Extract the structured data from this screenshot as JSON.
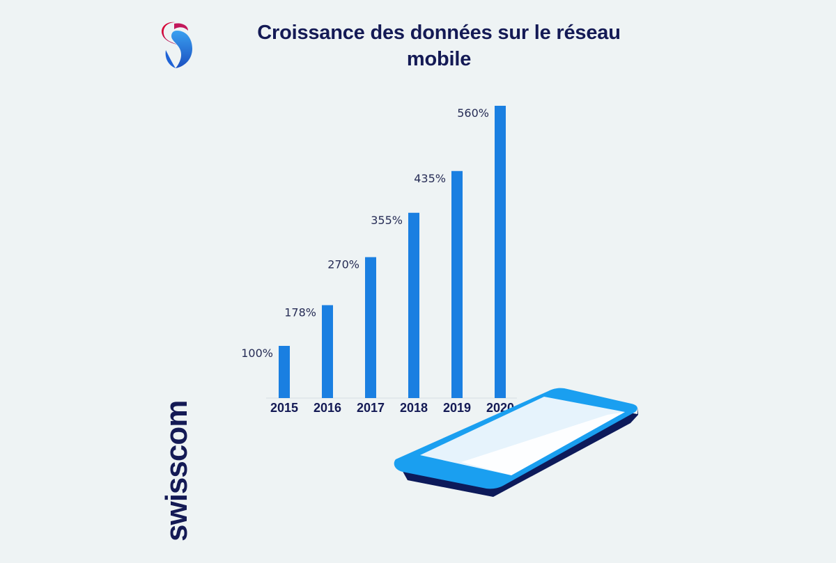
{
  "brand": {
    "wordmark": "swisscom",
    "logo_icon": "swisscom-lifeform-icon"
  },
  "colors": {
    "background": "#eef3f4",
    "bar": "#1a7fe1",
    "title": "#141a55",
    "phone_body": "#1a9ff0",
    "phone_shadow": "#0d1a5a",
    "phone_screen": "#dff0fb"
  },
  "chart_data": {
    "type": "bar",
    "title": "Croissance des données sur le réseau mobile",
    "categories": [
      "2015",
      "2016",
      "2017",
      "2018",
      "2019",
      "2020"
    ],
    "values": [
      100,
      178,
      270,
      355,
      435,
      560
    ],
    "data_labels": [
      "100%",
      "178%",
      "270%",
      "355%",
      "435%",
      "560%"
    ],
    "unit": "%",
    "ylim": [
      0,
      560
    ],
    "grid": false,
    "legend": "none"
  }
}
